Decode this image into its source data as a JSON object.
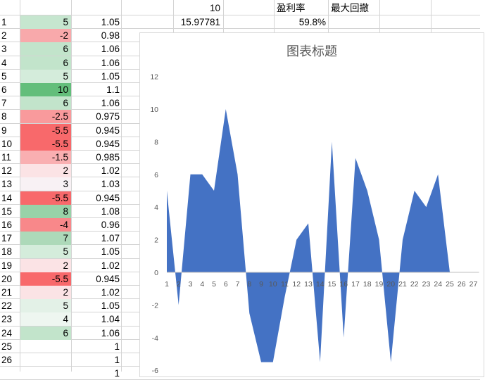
{
  "sheet": {
    "header": {
      "e_value": "10",
      "g_label": "盈利率",
      "h_label": "最大回撤"
    },
    "row2": {
      "e_value": "15.97781",
      "g_value": "59.8%"
    },
    "rows": [
      {
        "n": "1",
        "b": "5",
        "c": "1.05",
        "fill": "#c6e6cf"
      },
      {
        "n": "2",
        "b": "-2",
        "c": "0.98",
        "fill": "#f8a9ab"
      },
      {
        "n": "3",
        "b": "6",
        "c": "1.06",
        "fill": "#c2e4cb"
      },
      {
        "n": "4",
        "b": "6",
        "c": "1.06",
        "fill": "#c2e4cb"
      },
      {
        "n": "5",
        "b": "5",
        "c": "1.05",
        "fill": "#d4ecdb"
      },
      {
        "n": "6",
        "b": "10",
        "c": "1.1",
        "fill": "#63be7b"
      },
      {
        "n": "7",
        "b": "6",
        "c": "1.06",
        "fill": "#c2e4cb"
      },
      {
        "n": "8",
        "b": "-2.5",
        "c": "0.975",
        "fill": "#f99a9c"
      },
      {
        "n": "9",
        "b": "-5.5",
        "c": "0.945",
        "fill": "#f8696b"
      },
      {
        "n": "10",
        "b": "-5.5",
        "c": "0.945",
        "fill": "#f8696b"
      },
      {
        "n": "11",
        "b": "-1.5",
        "c": "0.985",
        "fill": "#f9afb1"
      },
      {
        "n": "12",
        "b": "2",
        "c": "1.02",
        "fill": "#fbe3e5"
      },
      {
        "n": "13",
        "b": "3",
        "c": "1.03",
        "fill": "#f8f1f4"
      },
      {
        "n": "14",
        "b": "-5.5",
        "c": "0.945",
        "fill": "#f8696b"
      },
      {
        "n": "15",
        "b": "8",
        "c": "1.08",
        "fill": "#98d2a8"
      },
      {
        "n": "16",
        "b": "-4",
        "c": "0.96",
        "fill": "#f8888a"
      },
      {
        "n": "17",
        "b": "7",
        "c": "1.07",
        "fill": "#add9b9"
      },
      {
        "n": "18",
        "b": "5",
        "c": "1.05",
        "fill": "#d4ecdb"
      },
      {
        "n": "19",
        "b": "2",
        "c": "1.02",
        "fill": "#fbe3e5"
      },
      {
        "n": "20",
        "b": "-5.5",
        "c": "0.945",
        "fill": "#f8696b"
      },
      {
        "n": "21",
        "b": "2",
        "c": "1.02",
        "fill": "#fbe3e5"
      },
      {
        "n": "22",
        "b": "5",
        "c": "1.05",
        "fill": "#e3f1e7"
      },
      {
        "n": "23",
        "b": "4",
        "c": "1.04",
        "fill": "#eef6f0"
      },
      {
        "n": "24",
        "b": "6",
        "c": "1.06",
        "fill": "#c2e4cb"
      },
      {
        "n": "25",
        "b": "",
        "c": "1",
        "fill": ""
      },
      {
        "n": "26",
        "b": "",
        "c": "1",
        "fill": ""
      },
      {
        "n": "",
        "b": "",
        "c": "1",
        "fill": ""
      }
    ]
  },
  "chart_data": {
    "type": "area",
    "title": "图表标题",
    "color": "#4472c4",
    "x": [
      "1",
      "2",
      "3",
      "4",
      "5",
      "6",
      "7",
      "8",
      "9",
      "10",
      "11",
      "12",
      "13",
      "14",
      "15",
      "16",
      "17",
      "18",
      "19",
      "20",
      "21",
      "22",
      "23",
      "24",
      "25",
      "26",
      "27"
    ],
    "values": [
      5,
      -2,
      6,
      6,
      5,
      10,
      6,
      -2.5,
      -5.5,
      -5.5,
      -1.5,
      2,
      3,
      -5.5,
      8,
      -4,
      7,
      5,
      2,
      -5.5,
      2,
      5,
      4,
      6,
      0,
      null,
      null
    ],
    "ylim": [
      -6,
      12
    ],
    "yticks": [
      -6,
      -4,
      -2,
      0,
      2,
      4,
      6,
      8,
      10,
      12
    ],
    "grid": false,
    "legend": "none"
  }
}
